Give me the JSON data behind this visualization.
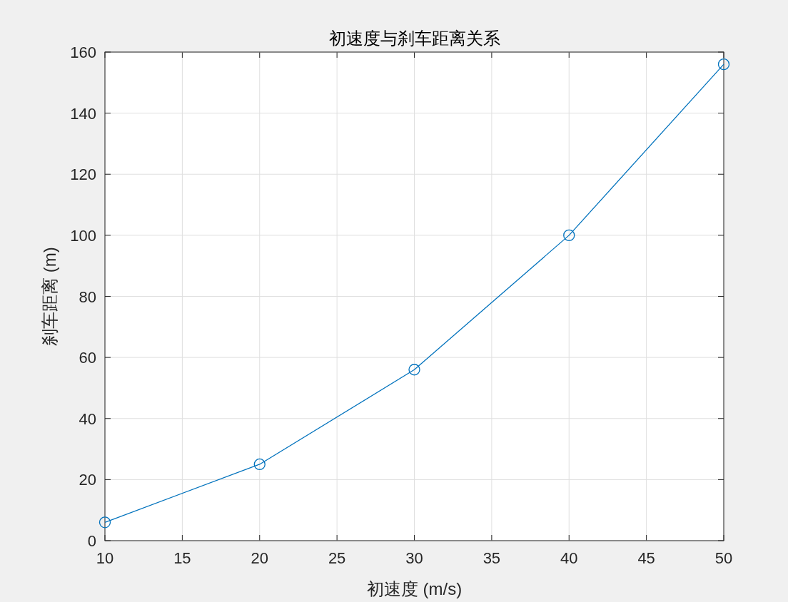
{
  "chart_data": {
    "type": "line",
    "title": "初速度与刹车距离关系",
    "xlabel": "初速度 (m/s)",
    "ylabel": "刹车距离 (m)",
    "x": [
      10,
      20,
      30,
      40,
      50
    ],
    "series": [
      {
        "color": "#0072bd",
        "values": [
          6,
          25,
          56,
          100,
          156
        ]
      }
    ],
    "xlim": [
      10,
      50
    ],
    "ylim": [
      0,
      160
    ],
    "xticks": [
      10,
      15,
      20,
      25,
      30,
      35,
      40,
      45,
      50
    ],
    "yticks": [
      0,
      20,
      40,
      60,
      80,
      100,
      120,
      140,
      160
    ],
    "grid": true,
    "marker": "circle",
    "line_style": "solid"
  }
}
